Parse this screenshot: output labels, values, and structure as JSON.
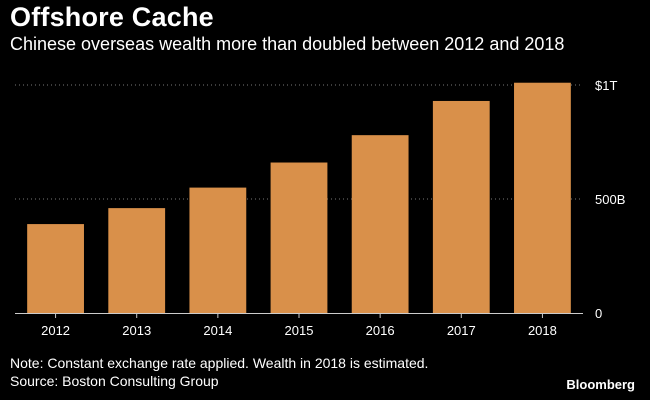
{
  "header": {
    "title": "Offshore Cache",
    "subtitle": "Chinese overseas wealth more than doubled between 2012 and 2018"
  },
  "footer": {
    "note": "Note: Constant exchange rate applied. Wealth in 2018 is estimated.",
    "source": "Source: Boston Consulting Group",
    "brand": "Bloomberg"
  },
  "colors": {
    "background": "#000000",
    "bar": "#d9904a",
    "gridline": "#777777",
    "text": "#ffffff"
  },
  "chart_data": {
    "type": "bar",
    "title": "Offshore Cache",
    "subtitle": "Chinese overseas wealth more than doubled between 2012 and 2018",
    "categories": [
      "2012",
      "2013",
      "2014",
      "2015",
      "2016",
      "2017",
      "2018"
    ],
    "values": [
      390,
      460,
      550,
      660,
      780,
      930,
      1010
    ],
    "unit": "billions USD",
    "xlabel": "",
    "ylabel": "",
    "ylim": [
      0,
      1000
    ],
    "yticks": [
      {
        "value": 0,
        "label": "0"
      },
      {
        "value": 500,
        "label": "500B"
      },
      {
        "value": 1000,
        "label": "$1T"
      }
    ],
    "yaxis_side": "right",
    "grid": true
  }
}
